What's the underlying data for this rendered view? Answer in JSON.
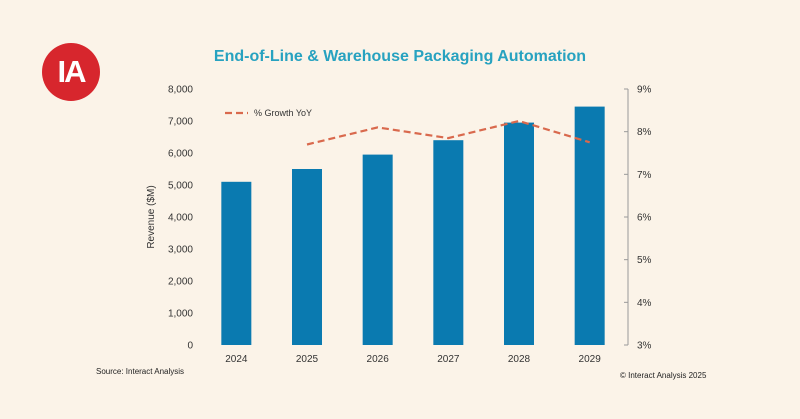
{
  "logo": {
    "text": "IA",
    "color": "#d7262d"
  },
  "chart_data": {
    "type": "bar",
    "title": "End-of-Line & Warehouse Packaging Automation",
    "categories": [
      "2024",
      "2025",
      "2026",
      "2027",
      "2028",
      "2029"
    ],
    "series": [
      {
        "values": [
          5100,
          5500,
          5950,
          6400,
          6950,
          7450
        ],
        "color": "#0a7ab0",
        "axis": "left"
      },
      {
        "name": "% Growth YoY",
        "type": "line",
        "style": "dashed",
        "values": [
          null,
          7.7,
          8.1,
          7.85,
          8.25,
          7.75
        ],
        "color": "#d9694d",
        "axis": "right"
      }
    ],
    "ylabel": "Revenue ($M)",
    "ylim": [
      0,
      8000
    ],
    "yticks": [
      "0",
      "1,000",
      "2,000",
      "3,000",
      "4,000",
      "5,000",
      "6,000",
      "7,000",
      "8,000"
    ],
    "y2lim": [
      3,
      9
    ],
    "y2ticks": [
      "3%",
      "4%",
      "5%",
      "6%",
      "7%",
      "8%",
      "9%"
    ],
    "legend": "top-left",
    "grid": false
  },
  "footer": {
    "source": "Source: Interact Analysis",
    "copyright": "© Interact Analysis 2025"
  }
}
